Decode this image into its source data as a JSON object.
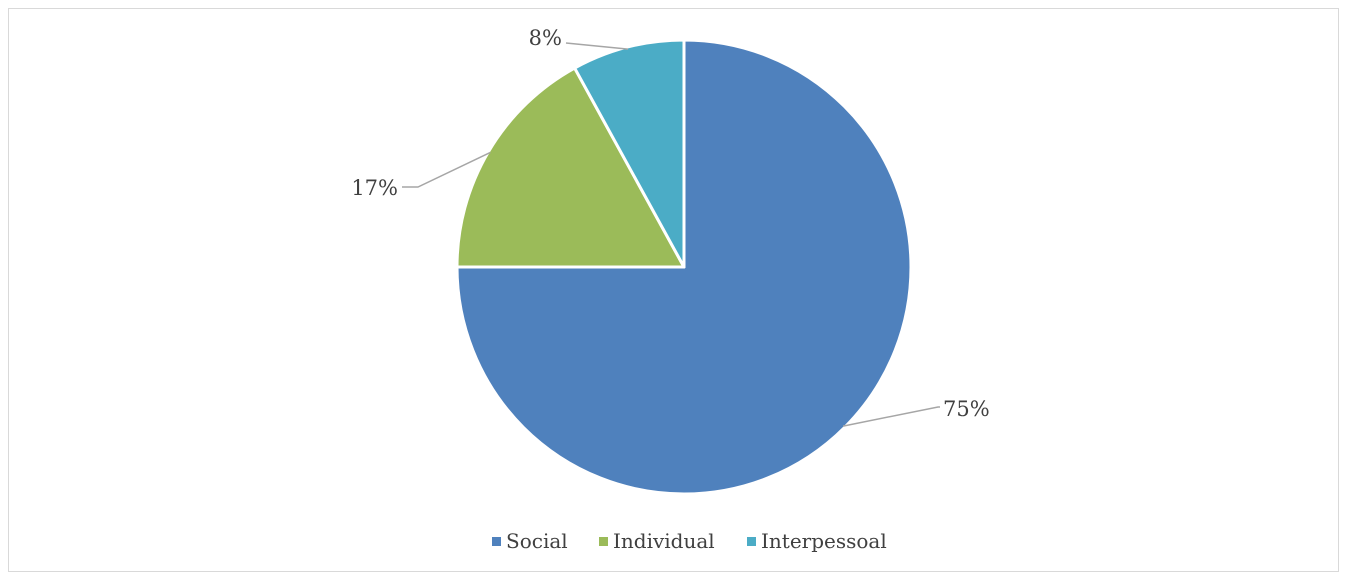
{
  "chart_data": {
    "type": "pie",
    "categories": [
      "Social",
      "Individual",
      "Interpessoal"
    ],
    "values": [
      75,
      17,
      8
    ],
    "data_labels": [
      "75%",
      "17%",
      "8%"
    ],
    "colors": [
      "#4f81bd",
      "#9bbb59",
      "#4bacc6"
    ],
    "start": "12 o'clock",
    "direction": "clockwise",
    "legend": {
      "position": "bottom",
      "entries": [
        "Social",
        "Individual",
        "Interpessoal"
      ]
    },
    "title": ""
  }
}
